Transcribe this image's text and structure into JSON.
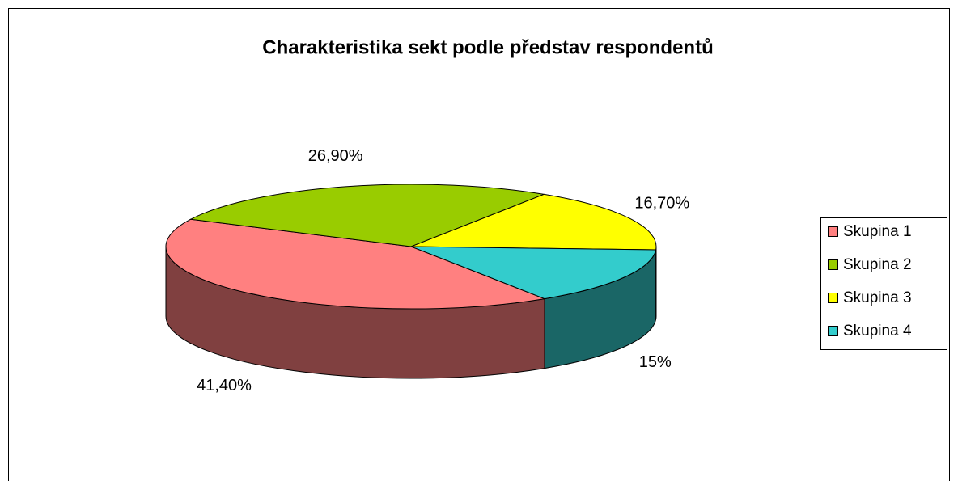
{
  "chart_data": {
    "type": "pie3d",
    "title": "Charakteristika sekt podle představ respondentů",
    "categories": [
      "Skupina 1",
      "Skupina 2",
      "Skupina 3",
      "Skupina 4"
    ],
    "values": [
      41.4,
      26.9,
      16.7,
      15
    ],
    "value_labels": [
      "41,40%",
      "26,90%",
      "16,70%",
      "15%"
    ],
    "colors": [
      "#FF8080",
      "#99CC00",
      "#FFFF00",
      "#33CCCC"
    ],
    "legend": "right"
  }
}
